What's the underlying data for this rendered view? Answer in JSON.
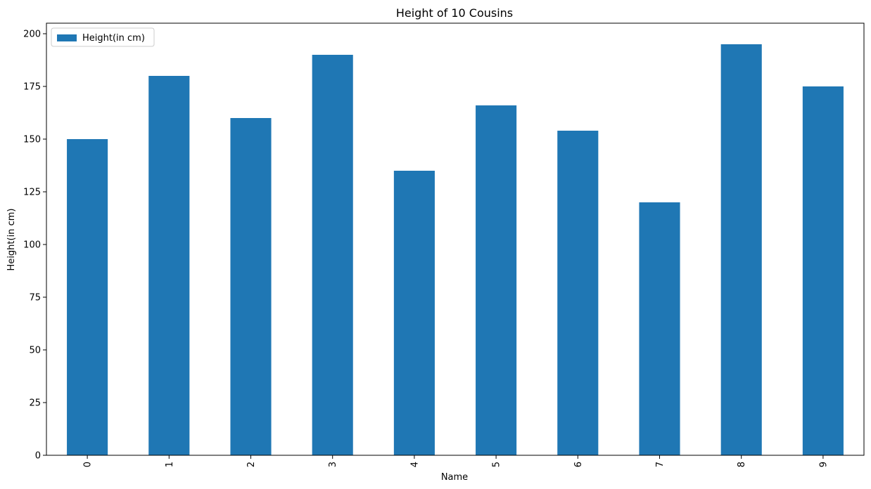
{
  "chart_data": {
    "type": "bar",
    "title": "Height of 10 Cousins",
    "xlabel": "Name",
    "ylabel": "Height(in cm)",
    "categories": [
      "0",
      "1",
      "2",
      "3",
      "4",
      "5",
      "6",
      "7",
      "8",
      "9"
    ],
    "series": [
      {
        "name": "Height(in cm)",
        "values": [
          150,
          180,
          160,
          190,
          135,
          166,
          154,
          120,
          195,
          175
        ],
        "color": "#1f77b4"
      }
    ],
    "ylim": [
      0,
      205
    ],
    "yticks": [
      0,
      25,
      50,
      75,
      100,
      125,
      150,
      175,
      200
    ],
    "x_tick_rotation": "vertical",
    "grid": false,
    "legend_position": "top-left"
  }
}
